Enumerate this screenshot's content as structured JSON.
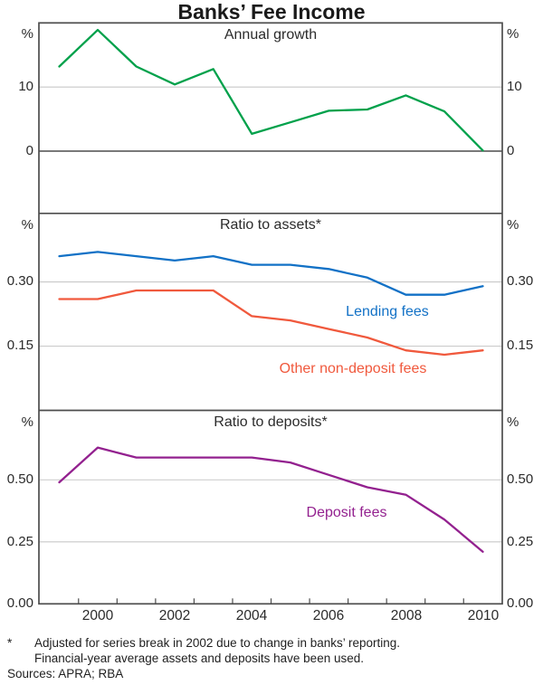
{
  "title": "Banks’ Fee Income",
  "x_axis": {
    "tick_labels": [
      "2000",
      "2002",
      "2004",
      "2006",
      "2008",
      "2010"
    ]
  },
  "footnote": {
    "marker": "*",
    "line1": "Adjusted for series break in 2002 due to change in banks’ reporting.",
    "line2": "Financial-year average assets and deposits have been used.",
    "sources": "Sources: APRA; RBA"
  },
  "chart_data": [
    {
      "type": "line",
      "title": "Annual growth",
      "unit": "%",
      "x": [
        1999,
        2000,
        2001,
        2002,
        2003,
        2004,
        2005,
        2006,
        2007,
        2008,
        2009,
        2010
      ],
      "ylim": [
        -9.7,
        20.0
      ],
      "gridlines": [
        10,
        0
      ],
      "zero_line": 0,
      "ytick_labels": [
        "10",
        "0"
      ],
      "legend_position": "none",
      "series": [
        {
          "name": "Annual growth",
          "color": "#00a14b",
          "values": [
            13.2,
            18.9,
            13.2,
            10.4,
            12.8,
            2.7,
            4.5,
            6.3,
            6.5,
            8.7,
            6.2,
            0.1
          ]
        }
      ]
    },
    {
      "type": "line",
      "title": "Ratio to assets*",
      "unit": "%",
      "x": [
        1999,
        2000,
        2001,
        2002,
        2003,
        2004,
        2005,
        2006,
        2007,
        2008,
        2009,
        2010
      ],
      "ylim": [
        0.0,
        0.46
      ],
      "gridlines": [
        0.3,
        0.15
      ],
      "ytick_labels": [
        "0.30",
        "0.15"
      ],
      "legend_position": "inline-annotations",
      "series": [
        {
          "name": "Lending fees",
          "color": "#1271c6",
          "values": [
            0.36,
            0.37,
            0.36,
            0.35,
            0.36,
            0.34,
            0.34,
            0.33,
            0.31,
            0.27,
            0.27,
            0.29
          ]
        },
        {
          "name": "Other non-deposit fees",
          "color": "#f0593d",
          "values": [
            0.26,
            0.26,
            0.28,
            0.28,
            0.28,
            0.22,
            0.21,
            0.19,
            0.17,
            0.14,
            0.13,
            0.14
          ]
        }
      ]
    },
    {
      "type": "line",
      "title": "Ratio to deposits*",
      "unit": "%",
      "x": [
        1999,
        2000,
        2001,
        2002,
        2003,
        2004,
        2005,
        2006,
        2007,
        2008,
        2009,
        2010
      ],
      "ylim": [
        0.0,
        0.78
      ],
      "gridlines": [
        0.5,
        0.25
      ],
      "ytick_labels": [
        "0.50",
        "0.25",
        "0.00"
      ],
      "legend_position": "inline-annotations",
      "series": [
        {
          "name": "Deposit fees",
          "color": "#93218f",
          "values": [
            0.49,
            0.63,
            0.59,
            0.59,
            0.59,
            0.59,
            0.57,
            0.52,
            0.47,
            0.44,
            0.34,
            0.21
          ]
        }
      ]
    }
  ]
}
